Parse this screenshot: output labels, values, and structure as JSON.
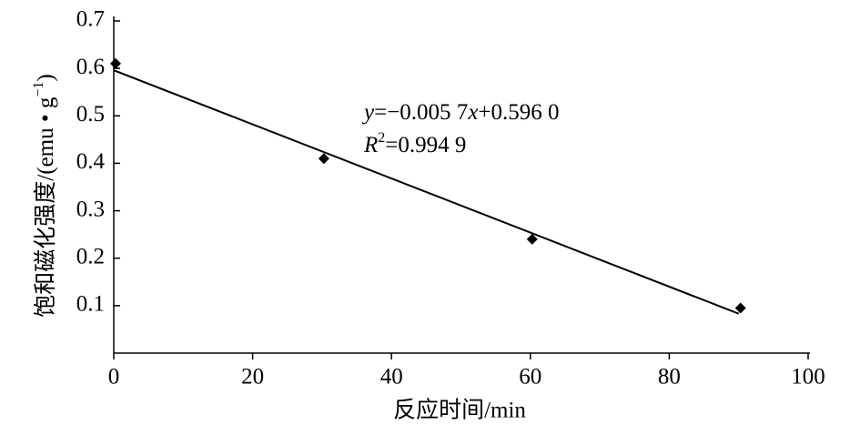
{
  "chart_data": {
    "type": "scatter",
    "x_label": "反应时间/min",
    "y_label_parts": [
      "饱和磁化强度/(emu • g",
      "−1",
      ")"
    ],
    "x": [
      0,
      30,
      60,
      90
    ],
    "values": [
      0.61,
      0.41,
      0.24,
      0.095
    ],
    "color": "#000000",
    "fit_line": {
      "x": [
        0,
        90
      ],
      "values": [
        0.596,
        0.083
      ],
      "color": "#000000"
    },
    "equation_parts": [
      "y",
      "=−0.005 7",
      "x",
      "+0.596 0"
    ],
    "r_squared_parts": [
      "R",
      "2",
      "=0.994 9"
    ],
    "xlim": [
      0,
      100
    ],
    "xticks": [
      0,
      20,
      40,
      60,
      80,
      100
    ],
    "ylim": [
      0,
      0.7
    ],
    "yticks": [
      0.1,
      0.2,
      0.3,
      0.4,
      0.5,
      0.6,
      0.7
    ]
  }
}
